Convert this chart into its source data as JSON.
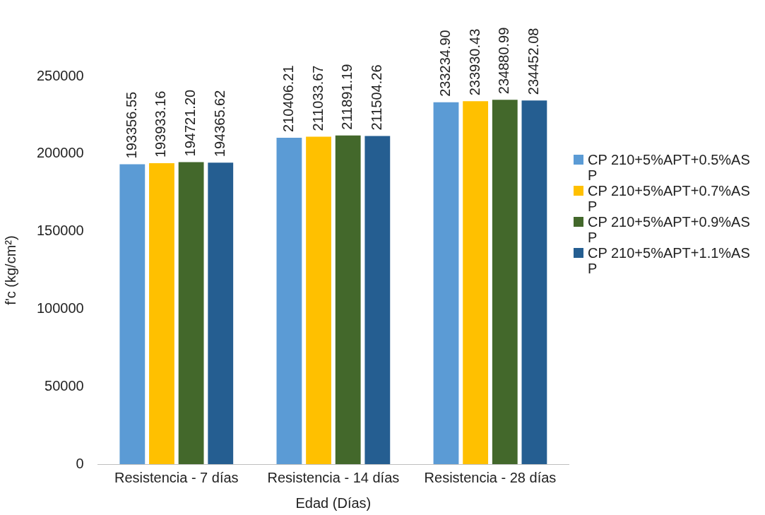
{
  "chart_data": {
    "type": "bar",
    "xlabel": "Edad (Días)",
    "ylabel": "f'c (kg/cm²)",
    "categories": [
      "Resistencia - 7 días",
      "Resistencia - 14 días",
      "Resistencia - 28 días"
    ],
    "series": [
      {
        "name": "CP 210+5%APT+0.5%ASP",
        "color": "#5b9bd5",
        "values": [
          193356.55,
          210406.21,
          233234.9
        ]
      },
      {
        "name": "CP 210+5%APT+0.7%ASP",
        "color": "#ffc000",
        "values": [
          193933.16,
          211033.67,
          233930.43
        ]
      },
      {
        "name": "CP 210+5%APT+0.9%ASP",
        "color": "#43682b",
        "values": [
          194721.2,
          211891.19,
          234880.99
        ]
      },
      {
        "name": "CP 210+5%APT+1.1%ASP",
        "color": "#255e91",
        "values": [
          194365.62,
          211504.26,
          234452.08
        ]
      }
    ],
    "value_labels": [
      [
        "193356.55",
        "210406.21",
        "233234.90"
      ],
      [
        "193933.16",
        "211033.67",
        "233930.43"
      ],
      [
        "194721.20",
        "211891.19",
        "234880.99"
      ],
      [
        "194365.62",
        "211504.26",
        "234452.08"
      ]
    ],
    "ylim": [
      0,
      250000
    ],
    "yticks": [
      0,
      50000,
      100000,
      150000,
      200000,
      250000
    ],
    "grid": false,
    "legend": "right"
  }
}
